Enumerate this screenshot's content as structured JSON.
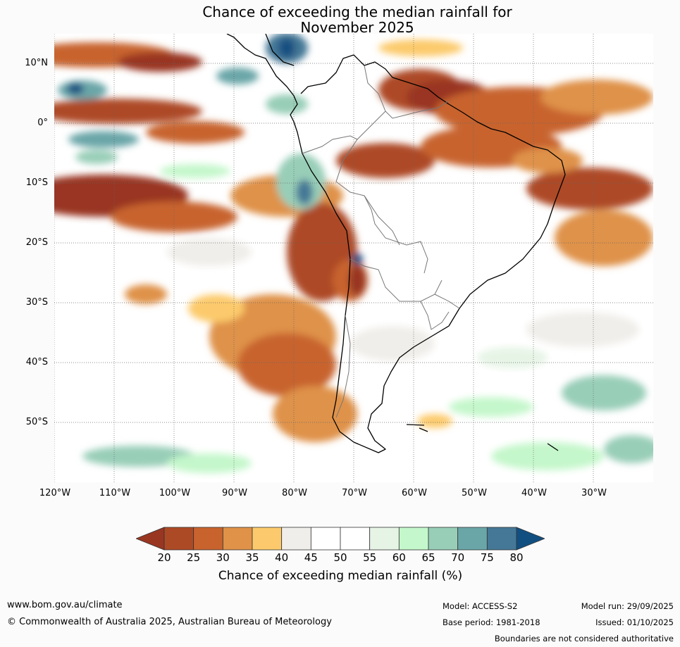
{
  "title": {
    "line1": "Chance of exceeding the median rainfall for",
    "line2": "November 2025"
  },
  "map": {
    "lat_labels": [
      "10°N",
      "0°",
      "10°S",
      "20°S",
      "30°S",
      "40°S",
      "50°S"
    ],
    "lon_labels": [
      "120°W",
      "110°W",
      "100°W",
      "90°W",
      "80°W",
      "70°W",
      "60°W",
      "50°W",
      "40°W",
      "30°W"
    ]
  },
  "legend": {
    "ticks": [
      "20",
      "25",
      "30",
      "35",
      "40",
      "45",
      "50",
      "55",
      "60",
      "65",
      "70",
      "75",
      "80"
    ],
    "colors": [
      "#993621",
      "#ad4a26",
      "#c8632e",
      "#df9248",
      "#fcca6c",
      "#f0eeea",
      "#ffffff",
      "#ffffff",
      "#e6f4e6",
      "#c4f7cb",
      "#98ceb8",
      "#6aa6a8",
      "#447896",
      "#124f81"
    ],
    "label": "Chance of exceeding median rainfall (%)"
  },
  "footer": {
    "website": "www.bom.gov.au/climate",
    "copyright": "© Commonwealth of Australia 2025, Australian Bureau of Meteorology",
    "model": "Model: ACCESS-S2",
    "base_period": "Base period: 1981-2018",
    "model_run": "Model run: 29/09/2025",
    "issued": "Issued: 01/10/2025",
    "disclaimer": "Boundaries are not considered authoritative"
  }
}
